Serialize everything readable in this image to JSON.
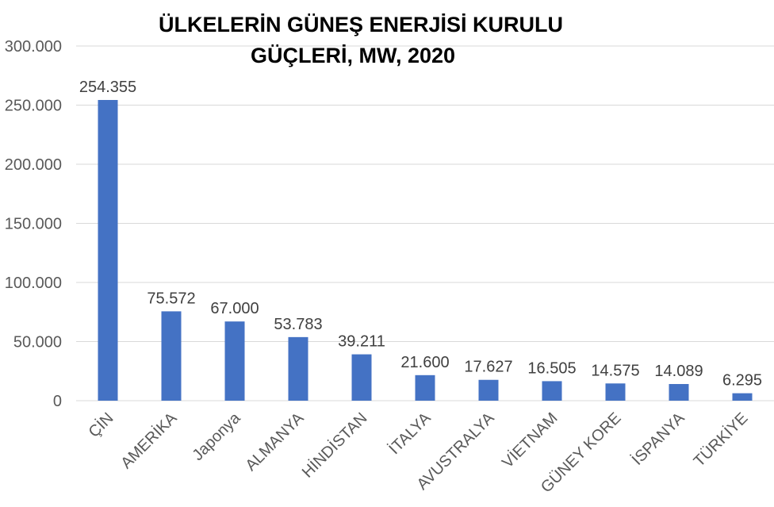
{
  "chart_data": {
    "type": "bar",
    "title_lines": [
      "ÜLKELERİN GÜNEŞ ENERJİSİ KURULU",
      "GÜÇLERİ, MW, 2020"
    ],
    "categories": [
      "ÇİN",
      "AMERİKA",
      "Japonya",
      "ALMANYA",
      "HİNDİSTAN",
      "İTALYA",
      "AVUSTRALYA",
      "VİETNAM",
      "GÜNEY KORE",
      "İSPANYA",
      "TÜRKİYE"
    ],
    "values": [
      254355,
      75572,
      67000,
      53783,
      39211,
      21600,
      17627,
      16505,
      14575,
      14089,
      6295
    ],
    "data_labels": [
      "254.355",
      "75.572",
      "67.000",
      "53.783",
      "39.211",
      "21.600",
      "17.627",
      "16.505",
      "14.575",
      "14.089",
      "6.295"
    ],
    "y_ticks": [
      "0",
      "50.000",
      "100.000",
      "150.000",
      "200.000",
      "250.000",
      "300.000"
    ],
    "ylim": [
      0,
      300000
    ],
    "grid": true,
    "bar_color": "#4472c4"
  }
}
